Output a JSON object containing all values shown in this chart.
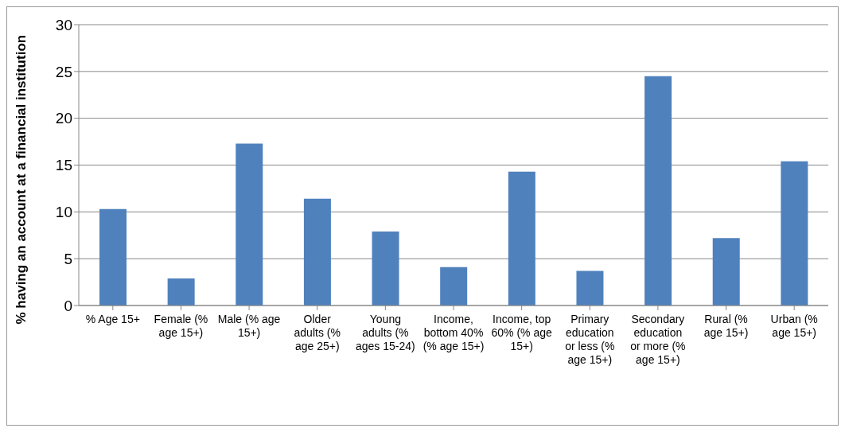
{
  "chart_data": {
    "type": "bar",
    "ylabel": "% having an account at a financial institution",
    "categories": [
      "% Age 15+",
      "Female (% age 15+)",
      "Male (% age 15+)",
      "Older adults (% age 25+)",
      "Young adults (% ages 15-24)",
      "Income, bottom 40% (% age 15+)",
      "Income, top 60% (% age 15+)",
      "Primary education or less (% age 15+)",
      "Secondary education or more (% age 15+)",
      "Rural (% age 15+)",
      "Urban (% age 15+)"
    ],
    "values": [
      10.3,
      2.9,
      17.3,
      11.4,
      7.9,
      4.1,
      14.3,
      3.7,
      24.5,
      7.2,
      15.4
    ],
    "color": "#4f81bd",
    "ylim": [
      0,
      30
    ],
    "yticks": [
      0,
      5,
      10,
      15,
      20,
      25,
      30
    ],
    "grid": "y"
  }
}
